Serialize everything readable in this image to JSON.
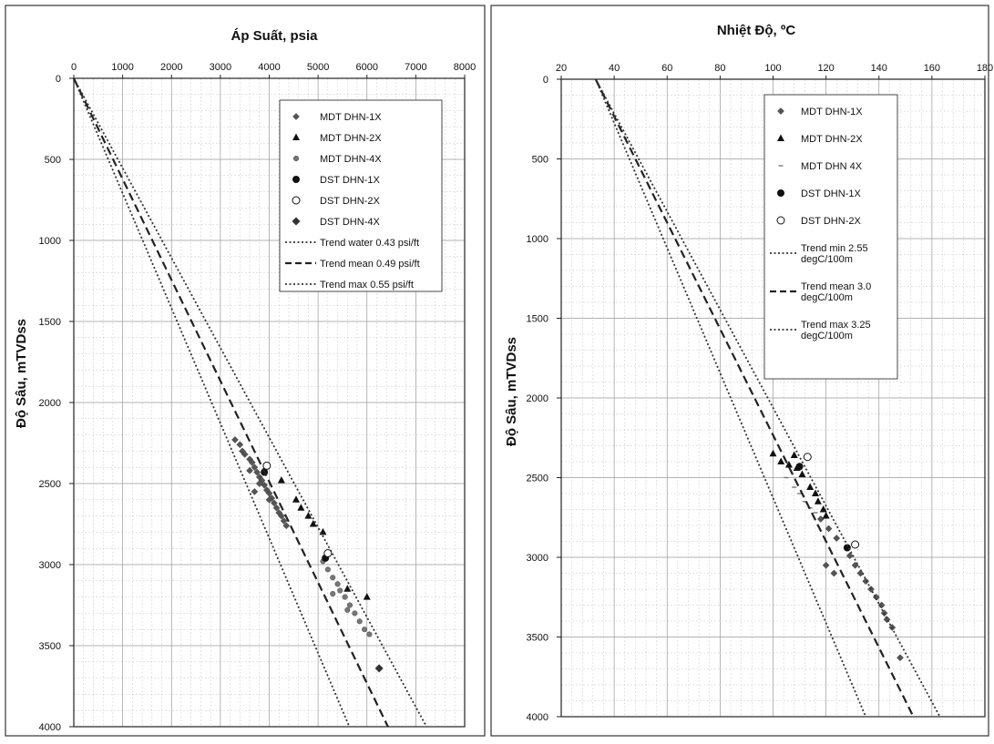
{
  "chart_data": [
    {
      "type": "scatter",
      "title": "Áp Suất, psia",
      "xlabel": "",
      "ylabel": "Độ Sâu, mTVDss",
      "xlim": [
        0,
        8000
      ],
      "ylim": [
        4000,
        0
      ],
      "xticks": [
        "0",
        "1000",
        "2000",
        "3000",
        "4000",
        "5000",
        "6000",
        "7000",
        "8000"
      ],
      "yticks": [
        "0",
        "500",
        "1000",
        "1500",
        "2000",
        "2500",
        "3000",
        "3500",
        "4000"
      ],
      "x_axis_position": "top",
      "y_axis_inverted": true,
      "grid": true,
      "legend_position": "top-right",
      "series": [
        {
          "name": "MDT DHN-1X",
          "marker": "diamond",
          "color": "#555555",
          "points": [
            [
              3300,
              2230
            ],
            [
              3400,
              2260
            ],
            [
              3450,
              2300
            ],
            [
              3500,
              2320
            ],
            [
              3600,
              2350
            ],
            [
              3650,
              2370
            ],
            [
              3700,
              2400
            ],
            [
              3750,
              2430
            ],
            [
              3800,
              2460
            ],
            [
              3850,
              2480
            ],
            [
              3900,
              2510
            ],
            [
              3950,
              2540
            ],
            [
              4000,
              2560
            ],
            [
              4050,
              2590
            ],
            [
              4100,
              2620
            ],
            [
              4150,
              2650
            ],
            [
              4200,
              2680
            ],
            [
              4250,
              2700
            ],
            [
              4300,
              2730
            ],
            [
              4350,
              2760
            ],
            [
              3600,
              2420
            ],
            [
              3800,
              2500
            ],
            [
              4000,
              2600
            ],
            [
              3700,
              2550
            ]
          ]
        },
        {
          "name": "MDT DHN-2X",
          "marker": "triangle",
          "color": "#111111",
          "points": [
            [
              4550,
              2600
            ],
            [
              4650,
              2650
            ],
            [
              4800,
              2700
            ],
            [
              4900,
              2750
            ],
            [
              5100,
              2800
            ],
            [
              5600,
              3150
            ],
            [
              6000,
              3200
            ],
            [
              4250,
              2480
            ]
          ]
        },
        {
          "name": "MDT DHN-4X",
          "marker": "circle-small",
          "color": "#777777",
          "points": [
            [
              5100,
              2980
            ],
            [
              5200,
              3030
            ],
            [
              5300,
              3080
            ],
            [
              5400,
              3120
            ],
            [
              5450,
              3160
            ],
            [
              5550,
              3200
            ],
            [
              5650,
              3250
            ],
            [
              5750,
              3300
            ],
            [
              5850,
              3350
            ],
            [
              5950,
              3400
            ],
            [
              6050,
              3430
            ],
            [
              5300,
              3180
            ],
            [
              5600,
              3280
            ]
          ]
        },
        {
          "name": "DST DHN-1X",
          "marker": "circle-filled",
          "color": "#111111",
          "points": [
            [
              3900,
              2430
            ],
            [
              5150,
              2960
            ]
          ]
        },
        {
          "name": "DST DHN-2X",
          "marker": "circle-open",
          "color": "#111111",
          "points": [
            [
              3950,
              2390
            ],
            [
              5200,
              2930
            ]
          ]
        },
        {
          "name": "DST DHN-4X",
          "marker": "star",
          "color": "#333333",
          "points": [
            [
              6250,
              3640
            ]
          ]
        },
        {
          "name": "Trend water 0.43 psi/ft",
          "marker": "dotted",
          "color": "#333333",
          "points": [
            [
              0,
              0
            ],
            [
              5640,
              4000
            ]
          ]
        },
        {
          "name": "Trend mean 0.49 psi/ft",
          "marker": "dashed",
          "color": "#222222",
          "points": [
            [
              0,
              0
            ],
            [
              6430,
              4000
            ]
          ]
        },
        {
          "name": "Trend max 0.55 psi/ft",
          "marker": "dotted",
          "color": "#333333",
          "points": [
            [
              0,
              0
            ],
            [
              7220,
              4000
            ]
          ]
        }
      ]
    },
    {
      "type": "scatter",
      "title": "Nhiệt Độ, ºC",
      "xlabel": "",
      "ylabel": "Độ Sâu, mTVDss",
      "xlim": [
        20,
        180
      ],
      "ylim": [
        4000,
        0
      ],
      "xticks": [
        "20",
        "40",
        "60",
        "80",
        "100",
        "120",
        "140",
        "160",
        "180"
      ],
      "yticks": [
        "0",
        "500",
        "1000",
        "1500",
        "2000",
        "2500",
        "3000",
        "3500",
        "4000"
      ],
      "x_axis_position": "top",
      "y_axis_inverted": true,
      "grid": true,
      "legend_position": "top-right",
      "series": [
        {
          "name": "MDT DHN-1X",
          "marker": "diamond",
          "color": "#555555",
          "points": [
            [
              118,
              2760
            ],
            [
              121,
              2820
            ],
            [
              124,
              2880
            ],
            [
              129,
              2990
            ],
            [
              131,
              3050
            ],
            [
              133,
              3100
            ],
            [
              135,
              3150
            ],
            [
              137,
              3200
            ],
            [
              139,
              3250
            ],
            [
              141,
              3300
            ],
            [
              142,
              3350
            ],
            [
              143,
              3390
            ],
            [
              145,
              3440
            ],
            [
              120,
              3050
            ],
            [
              123,
              3100
            ],
            [
              148,
              3630
            ]
          ]
        },
        {
          "name": "MDT DHN-2X",
          "marker": "triangle",
          "color": "#111111",
          "points": [
            [
              100,
              2350
            ],
            [
              103,
              2400
            ],
            [
              106,
              2420
            ],
            [
              109,
              2440
            ],
            [
              111,
              2480
            ],
            [
              114,
              2560
            ],
            [
              116,
              2600
            ],
            [
              117,
              2650
            ],
            [
              119,
              2700
            ],
            [
              120,
              2740
            ],
            [
              108,
              2360
            ]
          ]
        },
        {
          "name": "MDT DHN 4X",
          "marker": "dash-small",
          "color": "#777777",
          "points": [
            [
              105,
              2500
            ],
            [
              108,
              2560
            ],
            [
              110,
              2600
            ],
            [
              112,
              2650
            ],
            [
              114,
              2690
            ],
            [
              116,
              2720
            ]
          ]
        },
        {
          "name": "DST DHN-1X",
          "marker": "circle-filled",
          "color": "#111111",
          "points": [
            [
              110,
              2430
            ],
            [
              128,
              2940
            ]
          ]
        },
        {
          "name": "DST DHN-2X",
          "marker": "circle-open",
          "color": "#111111",
          "points": [
            [
              113,
              2370
            ],
            [
              131,
              2920
            ]
          ]
        },
        {
          "name": "Trend min 2.55 degC/100m",
          "marker": "dotted",
          "color": "#333333",
          "points": [
            [
              33,
              0
            ],
            [
              135,
              4000
            ]
          ]
        },
        {
          "name": "Trend mean 3.0 degC/100m",
          "marker": "dashed",
          "color": "#222222",
          "points": [
            [
              33,
              0
            ],
            [
              153,
              4000
            ]
          ]
        },
        {
          "name": "Trend max 3.25 degC/100m",
          "marker": "dotted",
          "color": "#333333",
          "points": [
            [
              33,
              0
            ],
            [
              163,
              4000
            ]
          ]
        }
      ]
    }
  ],
  "legends": [
    {
      "items": [
        "MDT DHN-1X",
        "MDT DHN-2X",
        "MDT DHN-4X",
        "DST DHN-1X",
        "DST DHN-2X",
        "DST DHN-4X",
        "Trend water 0.43 psi/ft",
        "Trend mean 0.49 psi/ft",
        "Trend max 0.55 psi/ft"
      ]
    },
    {
      "items": [
        [
          "MDT DHN-1X"
        ],
        [
          "MDT DHN-2X"
        ],
        [
          "MDT DHN 4X"
        ],
        [
          "DST DHN-1X"
        ],
        [
          "DST DHN-2X"
        ],
        [
          "Trend min 2.55",
          "degC/100m"
        ],
        [
          "Trend mean 3.0",
          "degC/100m"
        ],
        [
          "Trend max 3.25",
          "degC/100m"
        ]
      ]
    }
  ]
}
